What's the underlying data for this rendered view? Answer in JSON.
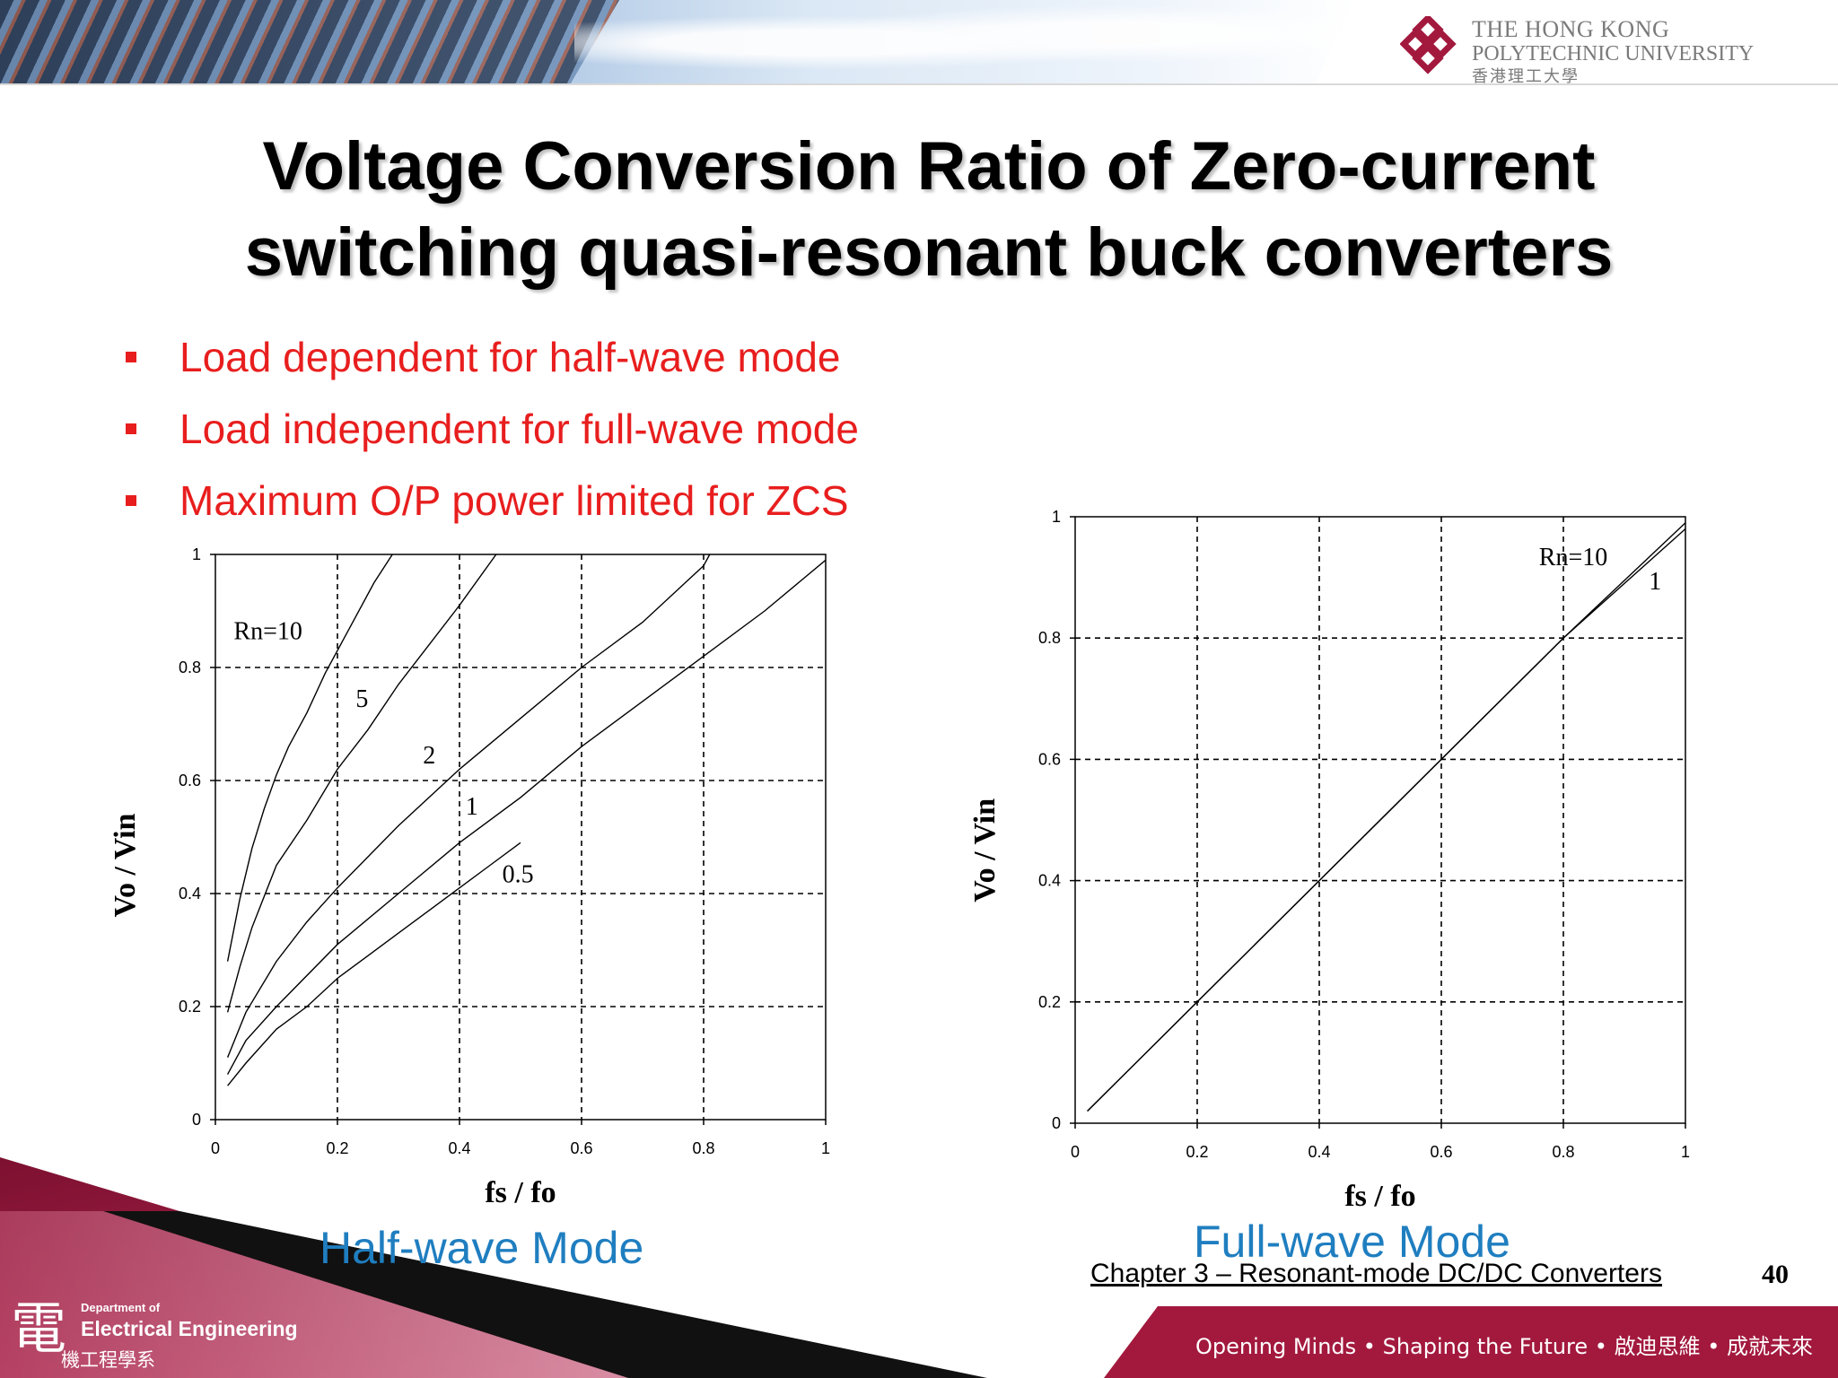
{
  "header": {
    "university": {
      "line1": "THE HONG KONG",
      "line2": "POLYTECHNIC UNIVERSITY",
      "line3": "香港理工大學"
    }
  },
  "title": {
    "line1": "Voltage Conversion Ratio of Zero-current",
    "line2": "switching quasi-resonant buck converters"
  },
  "bullets": [
    "Load dependent for half-wave mode",
    "Load independent for full-wave mode",
    "Maximum O/P power limited for ZCS"
  ],
  "colors": {
    "bullet_red": "#e81e1e",
    "mode_blue": "#1f7ec0",
    "footer_maroon": "#a3193e"
  },
  "chart_data": [
    {
      "type": "line",
      "id": "half-wave",
      "xlabel": "fs / fo",
      "ylabel": "Vo / Vin",
      "xlim": [
        0,
        1
      ],
      "ylim": [
        0,
        1
      ],
      "xticks": [
        "0",
        "0.2",
        "0.4",
        "0.6",
        "0.8",
        "1"
      ],
      "yticks": [
        "0",
        "0.2",
        "0.4",
        "0.6",
        "0.8",
        "1"
      ],
      "grid": true,
      "caption": "Half-wave Mode",
      "series": [
        {
          "name": "Rn=10",
          "x": [
            0.02,
            0.04,
            0.06,
            0.08,
            0.1,
            0.12,
            0.15,
            0.18,
            0.22,
            0.26,
            0.29
          ],
          "y": [
            0.28,
            0.39,
            0.48,
            0.55,
            0.61,
            0.66,
            0.72,
            0.79,
            0.87,
            0.95,
            1.0
          ]
        },
        {
          "name": "5",
          "x": [
            0.02,
            0.04,
            0.06,
            0.1,
            0.15,
            0.2,
            0.25,
            0.3,
            0.35,
            0.4,
            0.46
          ],
          "y": [
            0.19,
            0.27,
            0.34,
            0.45,
            0.53,
            0.62,
            0.69,
            0.77,
            0.84,
            0.91,
            1.0
          ]
        },
        {
          "name": "2",
          "x": [
            0.02,
            0.05,
            0.1,
            0.15,
            0.2,
            0.3,
            0.4,
            0.5,
            0.6,
            0.7,
            0.8,
            0.81
          ],
          "y": [
            0.11,
            0.19,
            0.28,
            0.35,
            0.41,
            0.52,
            0.62,
            0.71,
            0.8,
            0.88,
            0.98,
            1.0
          ]
        },
        {
          "name": "1",
          "x": [
            0.02,
            0.05,
            0.1,
            0.2,
            0.3,
            0.4,
            0.5,
            0.6,
            0.7,
            0.8,
            0.9,
            1.0
          ],
          "y": [
            0.08,
            0.14,
            0.2,
            0.31,
            0.4,
            0.49,
            0.57,
            0.66,
            0.74,
            0.82,
            0.9,
            0.99
          ]
        },
        {
          "name": "0.5",
          "x": [
            0.02,
            0.05,
            0.1,
            0.15,
            0.2,
            0.25,
            0.3,
            0.35,
            0.4,
            0.45,
            0.5
          ],
          "y": [
            0.06,
            0.1,
            0.16,
            0.2,
            0.25,
            0.29,
            0.33,
            0.37,
            0.41,
            0.45,
            0.49
          ]
        }
      ],
      "annotations": [
        {
          "text": "Rn=10",
          "x": 0.03,
          "y": 0.85
        },
        {
          "text": "5",
          "x": 0.23,
          "y": 0.73
        },
        {
          "text": "2",
          "x": 0.34,
          "y": 0.63
        },
        {
          "text": "1",
          "x": 0.41,
          "y": 0.54
        },
        {
          "text": "0.5",
          "x": 0.47,
          "y": 0.42
        }
      ]
    },
    {
      "type": "line",
      "id": "full-wave",
      "xlabel": "fs / fo",
      "ylabel": "Vo / Vin",
      "xlim": [
        0,
        1
      ],
      "ylim": [
        0,
        1
      ],
      "xticks": [
        "0",
        "0.2",
        "0.4",
        "0.6",
        "0.8",
        "1"
      ],
      "yticks": [
        "0",
        "0.2",
        "0.4",
        "0.6",
        "0.8",
        "1"
      ],
      "grid": true,
      "caption": "Full-wave Mode",
      "series": [
        {
          "name": "Rn=10",
          "x": [
            0.02,
            0.2,
            0.4,
            0.6,
            0.8,
            1.0
          ],
          "y": [
            0.02,
            0.2,
            0.4,
            0.6,
            0.8,
            0.99
          ]
        },
        {
          "name": "1",
          "x": [
            0.02,
            0.2,
            0.4,
            0.6,
            0.8,
            1.0
          ],
          "y": [
            0.02,
            0.2,
            0.4,
            0.6,
            0.8,
            0.98
          ]
        }
      ],
      "annotations": [
        {
          "text": "Rn=10",
          "x": 0.76,
          "y": 0.92
        },
        {
          "text": "1",
          "x": 0.94,
          "y": 0.88
        }
      ]
    }
  ],
  "footer": {
    "dept_small": "Department of",
    "dept_main": "Electrical Engineering",
    "dept_glyph": "電",
    "dept_zh": "機工程學系",
    "chapter": "Chapter 3 – Resonant-mode DC/DC Converters",
    "page_number": "40",
    "slogan": "Opening Minds • Shaping the Future • 啟迪思維 • 成就未來"
  }
}
